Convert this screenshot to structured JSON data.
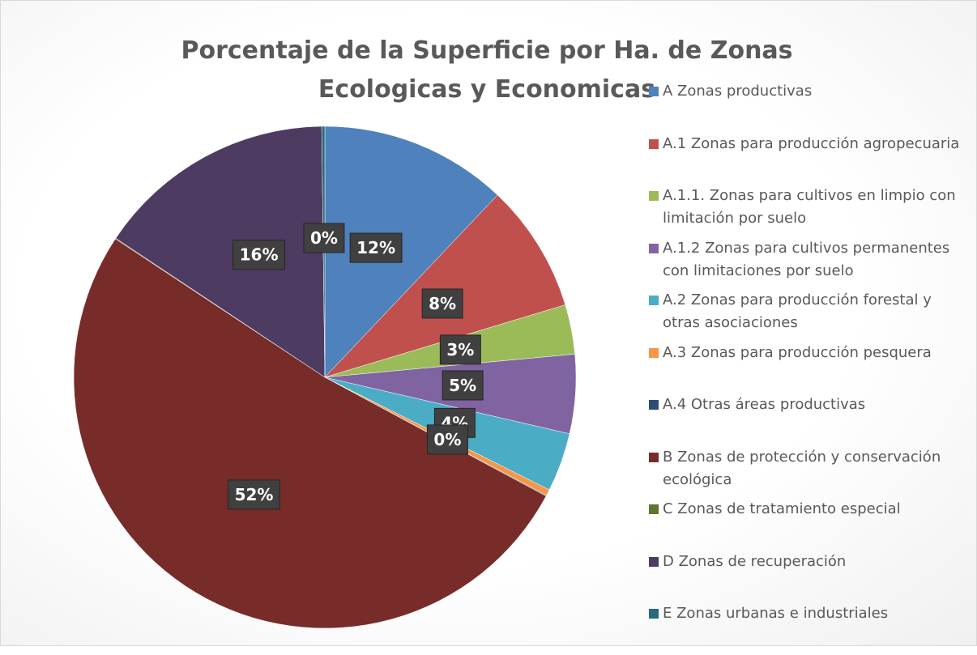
{
  "chart_data": {
    "type": "pie",
    "title": "Porcentaje de la Superficie por Ha. de Zonas Ecologicas y Economicas",
    "categories": [
      "A Zonas productivas",
      "A.1 Zonas para producción agropecuaria",
      "A.1.1. Zonas para cultivos en limpio con limitación por suelo",
      "A.1.2 Zonas para cultivos permanentes con limitaciones por suelo",
      "A.2 Zonas para producción forestal y otras asociaciones",
      "A.3 Zonas para producción pesquera",
      "A.4 Otras áreas productivas",
      "B Zonas de protección y conservación ecológica",
      "C Zonas de tratamiento especial",
      "D Zonas de recuperación",
      "E Zonas urbanas e industriales"
    ],
    "values": [
      12.1,
      8.3,
      3.2,
      5.1,
      3.8,
      0.4,
      0.05,
      51.6,
      0.05,
      15.5,
      0.2
    ],
    "value_labels": [
      "12%",
      "8%",
      "3%",
      "5%",
      "4%",
      "0%",
      null,
      "52%",
      null,
      "16%",
      "0%"
    ],
    "colors": [
      "#4f81bd",
      "#c0504d",
      "#9bbb59",
      "#8064a2",
      "#4bacc6",
      "#f79646",
      "#2c4d75",
      "#772c2a",
      "#5f7530",
      "#4d3b62",
      "#276a7c"
    ],
    "legend": "right"
  }
}
